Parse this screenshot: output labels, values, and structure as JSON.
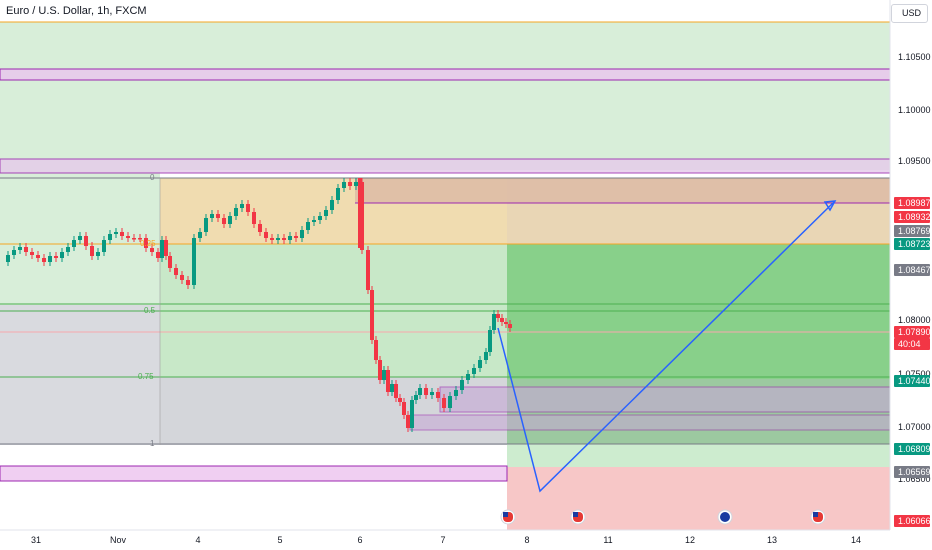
{
  "header": {
    "symbol_title": "Euro / U.S. Dollar, 1h, FXCM",
    "currency": "USD"
  },
  "colors": {
    "upper_zone": "#d8eed9",
    "fib_top": "#f0dcb0",
    "fib_mid": "#c8e8c8",
    "fib_bottom": "#d9dadf",
    "target_zone": "#88d08a",
    "stop_zone": "#f7c7c7",
    "up_candle": "#089981",
    "down_candle": "#f23645",
    "purple": "#9c27b0",
    "arrow": "#2962ff"
  },
  "price_axis": {
    "ticks": [
      "1.10500",
      "1.10000",
      "1.09500",
      "1.08000",
      "1.07500",
      "1.07000",
      "1.06500"
    ],
    "tags": [
      {
        "label": "1.08987",
        "color": "#f23645"
      },
      {
        "label": "1.08932",
        "color": "#f23645"
      },
      {
        "label": "1.08769",
        "color": "#787b86"
      },
      {
        "label": "1.08723",
        "color": "#089981"
      },
      {
        "label": "1.08467",
        "color": "#787b86"
      },
      {
        "label": "1.07890",
        "color": "#f23645"
      },
      {
        "label": "40:04",
        "color": "#f23645"
      },
      {
        "label": "1.07440",
        "color": "#089981"
      },
      {
        "label": "1.06809",
        "color": "#089981"
      },
      {
        "label": "1.06569",
        "color": "#787b86"
      },
      {
        "label": "1.06066",
        "color": "#f23645"
      }
    ]
  },
  "time_axis": {
    "labels": [
      "31",
      "Nov",
      "4",
      "5",
      "6",
      "7",
      "8",
      "11",
      "12",
      "13",
      "14"
    ]
  },
  "fib_levels": [
    {
      "label": "0"
    },
    {
      "label": "0.25"
    },
    {
      "label": "0.5"
    },
    {
      "label": "0.75"
    },
    {
      "label": "1"
    }
  ],
  "event_icons": [
    "us-flag-icon",
    "us-flag-icon",
    "eu-flag-icon",
    "us-flag-icon"
  ]
}
